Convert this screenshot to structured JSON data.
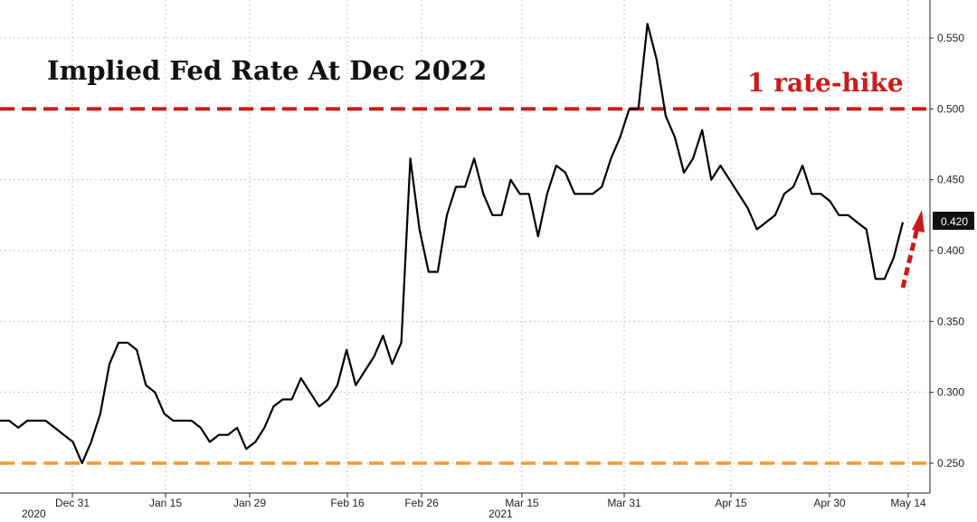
{
  "chart_data": {
    "type": "line",
    "title": "Implied Fed Rate At Dec 2022",
    "annotation": "1 rate-hike",
    "last_value_label": "0.420",
    "ylim": [
      0.24,
      0.57
    ],
    "yticks": [
      "0.250",
      "0.300",
      "0.350",
      "0.400",
      "0.450",
      "0.500",
      "0.550"
    ],
    "xtick_labels": [
      "Dec 31",
      "Jan 15",
      "Jan 29",
      "Feb 16",
      "Feb 26",
      "Mar 15",
      "Mar 31",
      "Apr 15",
      "Apr 30",
      "May 14"
    ],
    "year_labels": [
      "2020",
      "2021"
    ],
    "grid": true,
    "y_axis_side": "right",
    "reference_lines": [
      {
        "value": 0.5,
        "color": "#cc1a1a",
        "style": "dashed",
        "label": "1 rate-hike"
      },
      {
        "value": 0.25,
        "color": "#f39a2b",
        "style": "dashed"
      }
    ],
    "series": [
      {
        "color": "#000000",
        "values": [
          0.28,
          0.28,
          0.275,
          0.28,
          0.28,
          0.28,
          0.275,
          0.27,
          0.265,
          0.25,
          0.265,
          0.285,
          0.32,
          0.335,
          0.335,
          0.33,
          0.305,
          0.3,
          0.285,
          0.28,
          0.28,
          0.28,
          0.275,
          0.265,
          0.27,
          0.27,
          0.275,
          0.26,
          0.265,
          0.275,
          0.29,
          0.295,
          0.295,
          0.31,
          0.3,
          0.29,
          0.295,
          0.305,
          0.33,
          0.305,
          0.315,
          0.325,
          0.34,
          0.32,
          0.335,
          0.465,
          0.415,
          0.385,
          0.385,
          0.425,
          0.445,
          0.445,
          0.465,
          0.44,
          0.425,
          0.425,
          0.45,
          0.44,
          0.44,
          0.41,
          0.44,
          0.46,
          0.455,
          0.44,
          0.44,
          0.44,
          0.445,
          0.465,
          0.48,
          0.5,
          0.5,
          0.56,
          0.535,
          0.495,
          0.48,
          0.455,
          0.465,
          0.485,
          0.45,
          0.46,
          0.45,
          0.44,
          0.43,
          0.415,
          0.42,
          0.425,
          0.44,
          0.445,
          0.46,
          0.44,
          0.44,
          0.435,
          0.425,
          0.425,
          0.42,
          0.415,
          0.38,
          0.38,
          0.395,
          0.42
        ]
      }
    ],
    "colors": {
      "line": "#000000",
      "hike_line": "#cc1a1a",
      "floor_line": "#f39a2b",
      "grid": "#c8c8c8",
      "label_box": "#111111"
    }
  }
}
